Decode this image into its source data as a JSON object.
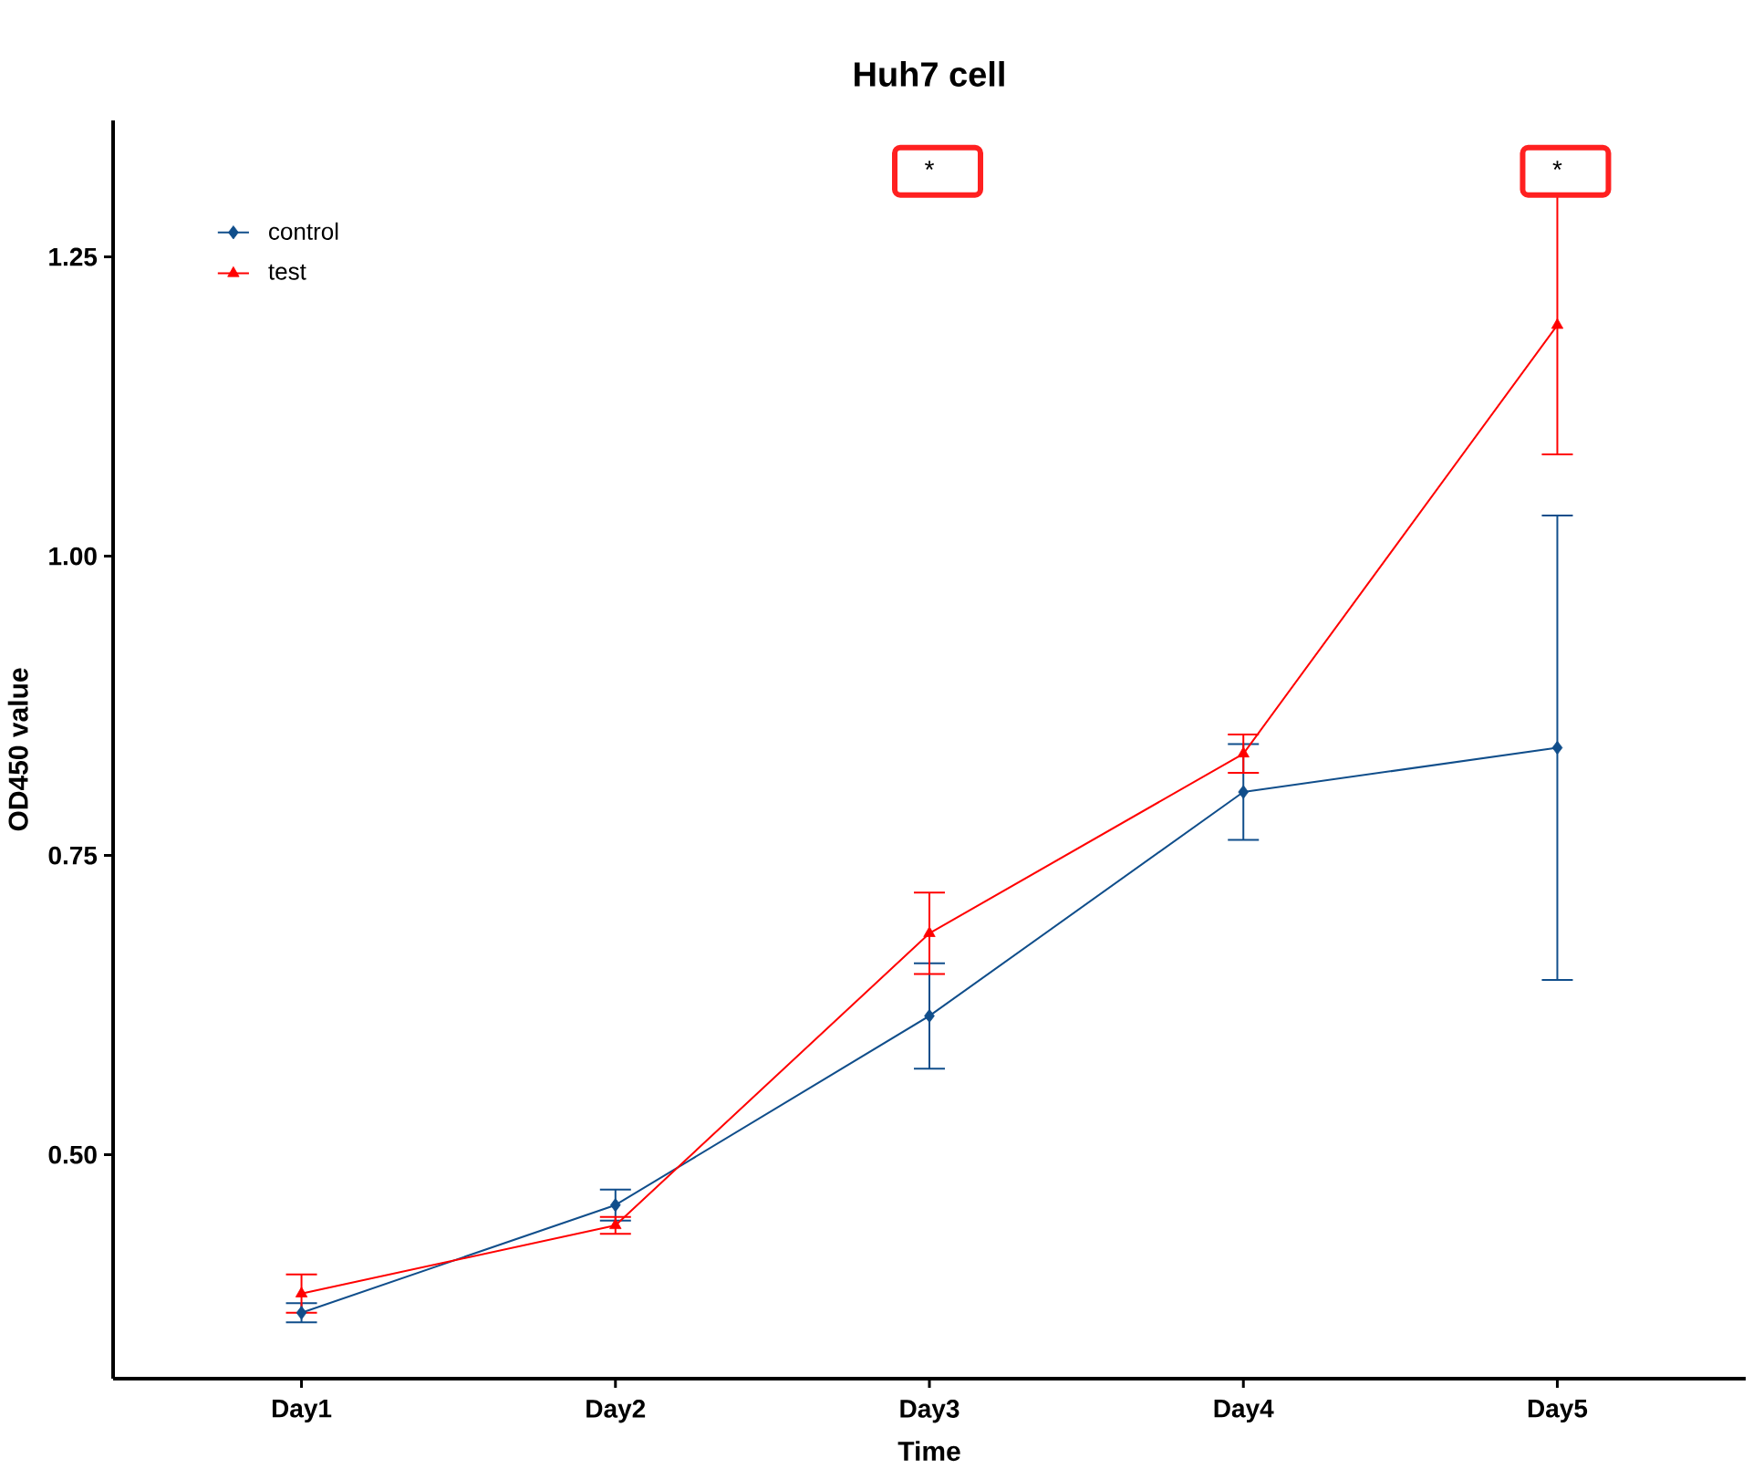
{
  "chart_data": {
    "type": "line",
    "title": "Huh7 cell",
    "xlabel": "Time",
    "ylabel": "OD450 value",
    "categories": [
      "Day1",
      "Day2",
      "Day3",
      "Day4",
      "Day5"
    ],
    "series": [
      {
        "name": "control",
        "color": "#104e8b",
        "marker": "diamond",
        "values": [
          0.368,
          0.458,
          0.616,
          0.803,
          0.84
        ],
        "errors": [
          0.008,
          0.013,
          0.044,
          0.04,
          0.194
        ]
      },
      {
        "name": "test",
        "color": "#ff0000",
        "marker": "triangle",
        "values": [
          0.384,
          0.441,
          0.685,
          0.835,
          1.193
        ],
        "errors": [
          0.016,
          0.007,
          0.034,
          0.016,
          0.108
        ]
      }
    ],
    "ylim": [
      0.313,
      1.364
    ],
    "yticks": [
      {
        "value": 0.5,
        "label": "0.50"
      },
      0.75,
      {
        "value": 1.0,
        "label": "1.00"
      },
      1.25
    ],
    "legend": "top left",
    "annotations": [
      "*",
      "*"
    ]
  }
}
